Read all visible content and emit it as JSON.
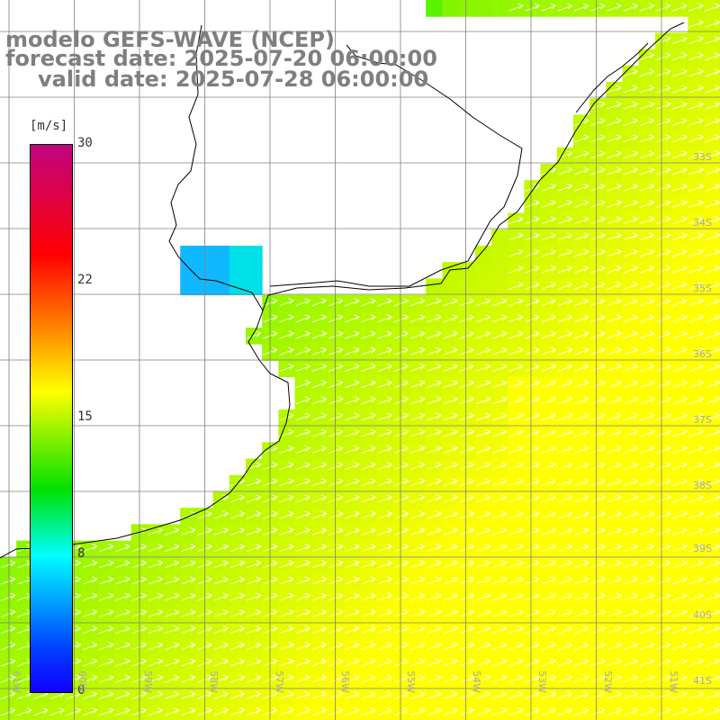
{
  "title": {
    "line1": "modelo GEFS-WAVE (NCEP)",
    "line2": "forecast date: 2025-07-20 06:00:00",
    "line3": "valid date: 2025-07-28 06:00:00"
  },
  "colorbar": {
    "unit": "[m/s]",
    "labels": [
      "30",
      "22",
      "15",
      "8",
      "0"
    ],
    "colors": [
      "#c0047f",
      "#ff0000",
      "#ff8000",
      "#ffff00",
      "#00e000",
      "#00ffff",
      "#0040ff",
      "#1000ff"
    ]
  },
  "lat_labels": [
    "33S",
    "34S",
    "35S",
    "36S",
    "37S",
    "38S",
    "39S",
    "40S",
    "41S"
  ],
  "lon_labels": [
    "61W",
    "60W",
    "59W",
    "58W",
    "57W",
    "56W",
    "55W",
    "54W",
    "53W",
    "52W",
    "51W"
  ],
  "colors": {
    "land": "#ffffff",
    "grid": "#808080",
    "coast": "#000000",
    "arrow": "#ffffff"
  }
}
